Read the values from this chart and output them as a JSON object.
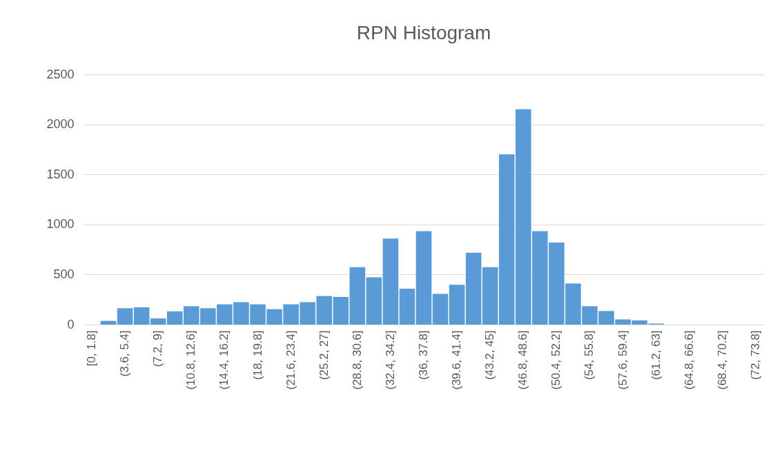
{
  "chart_data": {
    "type": "bar",
    "title": "RPN Histogram",
    "categories": [
      "[0, 1.8]",
      null,
      "(3.6, 5.4]",
      null,
      "(7.2, 9]",
      null,
      "(10.8, 12.6]",
      null,
      "(14.4, 16.2]",
      null,
      "(18, 19.8]",
      null,
      "(21.6, 23.4]",
      null,
      "(25.2, 27]",
      null,
      "(28.8, 30.6]",
      null,
      "(32.4, 34.2]",
      null,
      "(36, 37.8]",
      null,
      "(39.6, 41.4]",
      null,
      "(43.2, 45]",
      null,
      "(46.8, 48.6]",
      null,
      "(50.4, 52.2]",
      null,
      "(54, 55.8]",
      null,
      "(57.6, 59.4]",
      null,
      "(61.2, 63]",
      null,
      "(64.8, 66.6]",
      null,
      "(68.4, 70.2]",
      null,
      "(72, 73.8]"
    ],
    "values": [
      0,
      37,
      163,
      173,
      61,
      132,
      183,
      163,
      202,
      224,
      202,
      154,
      202,
      224,
      285,
      276,
      573,
      471,
      860,
      358,
      934,
      307,
      398,
      718,
      574,
      1701,
      2152,
      934,
      820,
      409,
      183,
      135,
      51,
      41,
      10,
      0,
      0,
      0,
      0,
      0,
      0
    ],
    "color": "#5b9bd5",
    "ylim": [
      0,
      2500
    ],
    "yticks": [
      0,
      500,
      1000,
      1500,
      2000,
      2500
    ],
    "grid": "y"
  }
}
